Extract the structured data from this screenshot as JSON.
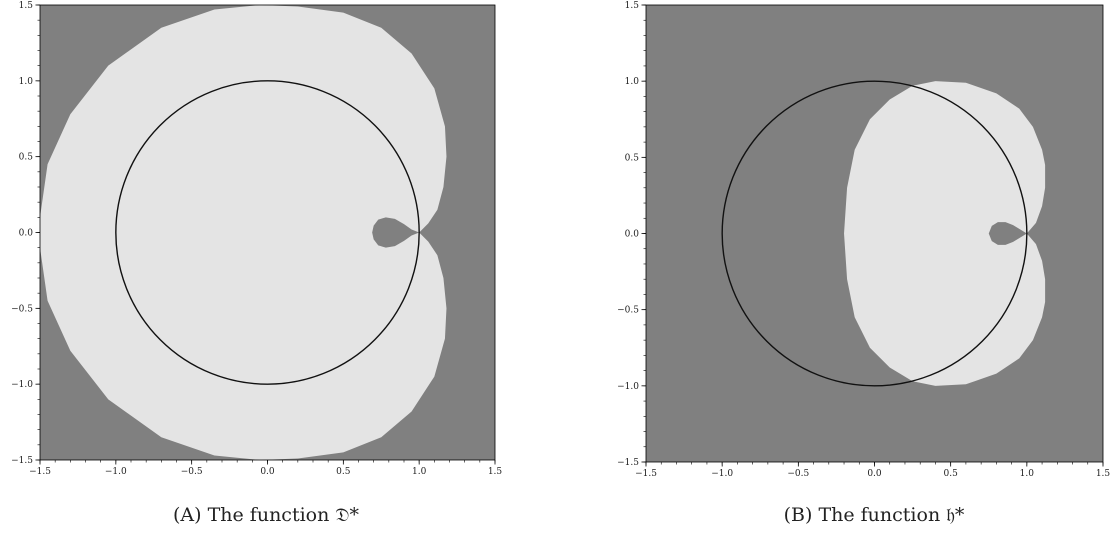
{
  "chart_data": [
    {
      "type": "region-plot",
      "caption": "(A) The function 𝔇*",
      "xlim": [
        -1.5,
        1.5
      ],
      "ylim": [
        -1.5,
        1.5
      ],
      "x_ticks": [
        -1.5,
        -1.0,
        -0.5,
        0.0,
        0.5,
        1.0,
        1.5
      ],
      "y_ticks": [
        -1.5,
        -1.0,
        -0.5,
        0.0,
        0.5,
        1.0,
        1.5
      ],
      "x_tick_labels": [
        "−1.5",
        "−1.0",
        "−0.5",
        "0.0",
        "0.5",
        "1.0",
        "1.5"
      ],
      "y_tick_labels": [
        "−1.5",
        "−1.0",
        "−0.5",
        "0.0",
        "0.5",
        "1.0",
        "1.5"
      ],
      "unit_circle": {
        "center": [
          0,
          0
        ],
        "radius": 1
      },
      "region_boundary": [
        [
          1.0,
          0.0
        ],
        [
          1.06,
          0.06
        ],
        [
          1.12,
          0.15
        ],
        [
          1.16,
          0.3
        ],
        [
          1.18,
          0.5
        ],
        [
          1.17,
          0.7
        ],
        [
          1.1,
          0.95
        ],
        [
          0.95,
          1.18
        ],
        [
          0.75,
          1.35
        ],
        [
          0.5,
          1.45
        ],
        [
          0.2,
          1.49
        ],
        [
          -0.05,
          1.5
        ],
        [
          -0.35,
          1.47
        ],
        [
          -0.7,
          1.35
        ],
        [
          -1.05,
          1.1
        ],
        [
          -1.3,
          0.78
        ],
        [
          -1.45,
          0.45
        ],
        [
          -1.5,
          0.1
        ],
        [
          -1.5,
          -0.1
        ],
        [
          -1.45,
          -0.45
        ],
        [
          -1.3,
          -0.78
        ],
        [
          -1.05,
          -1.1
        ],
        [
          -0.7,
          -1.35
        ],
        [
          -0.35,
          -1.47
        ],
        [
          -0.05,
          -1.5
        ],
        [
          0.2,
          -1.49
        ],
        [
          0.5,
          -1.45
        ],
        [
          0.75,
          -1.35
        ],
        [
          0.95,
          -1.18
        ],
        [
          1.1,
          -0.95
        ],
        [
          1.17,
          -0.7
        ],
        [
          1.18,
          -0.5
        ],
        [
          1.16,
          -0.3
        ],
        [
          1.12,
          -0.15
        ],
        [
          1.06,
          -0.06
        ],
        [
          1.0,
          0.0
        ]
      ],
      "hole_boundary": [
        [
          1.0,
          0.0
        ],
        [
          0.95,
          0.02
        ],
        [
          0.9,
          0.055
        ],
        [
          0.84,
          0.09
        ],
        [
          0.78,
          0.1
        ],
        [
          0.73,
          0.085
        ],
        [
          0.7,
          0.045
        ],
        [
          0.69,
          0.0
        ],
        [
          0.7,
          -0.045
        ],
        [
          0.73,
          -0.085
        ],
        [
          0.78,
          -0.1
        ],
        [
          0.84,
          -0.09
        ],
        [
          0.9,
          -0.055
        ],
        [
          0.95,
          -0.02
        ],
        [
          1.0,
          0.0
        ]
      ],
      "colors": {
        "background": "#808080",
        "region": "#e4e4e4",
        "circle": "#111111"
      }
    },
    {
      "type": "region-plot",
      "caption": "(B) The function 𝔥*",
      "xlim": [
        -1.5,
        1.5
      ],
      "ylim": [
        -1.5,
        1.5
      ],
      "x_ticks": [
        -1.5,
        -1.0,
        -0.5,
        0.0,
        0.5,
        1.0,
        1.5
      ],
      "y_ticks": [
        -1.5,
        -1.0,
        -0.5,
        0.0,
        0.5,
        1.0,
        1.5
      ],
      "x_tick_labels": [
        "−1.5",
        "−1.0",
        "−0.5",
        "0.0",
        "0.5",
        "1.0",
        "1.5"
      ],
      "y_tick_labels": [
        "−1.5",
        "−1.0",
        "−0.5",
        "0.0",
        "0.5",
        "1.0",
        "1.5"
      ],
      "unit_circle": {
        "center": [
          0,
          0
        ],
        "radius": 1
      },
      "region_boundary": [
        [
          1.0,
          0.0
        ],
        [
          1.06,
          0.07
        ],
        [
          1.1,
          0.18
        ],
        [
          1.12,
          0.3
        ],
        [
          1.12,
          0.45
        ],
        [
          1.1,
          0.55
        ],
        [
          1.04,
          0.7
        ],
        [
          0.95,
          0.82
        ],
        [
          0.8,
          0.92
        ],
        [
          0.6,
          0.99
        ],
        [
          0.4,
          1.0
        ],
        [
          0.25,
          0.97
        ],
        [
          0.1,
          0.88
        ],
        [
          -0.03,
          0.75
        ],
        [
          -0.13,
          0.55
        ],
        [
          -0.18,
          0.3
        ],
        [
          -0.2,
          0.0
        ],
        [
          -0.18,
          -0.3
        ],
        [
          -0.13,
          -0.55
        ],
        [
          -0.03,
          -0.75
        ],
        [
          0.1,
          -0.88
        ],
        [
          0.25,
          -0.97
        ],
        [
          0.4,
          -1.0
        ],
        [
          0.6,
          -0.99
        ],
        [
          0.8,
          -0.92
        ],
        [
          0.95,
          -0.82
        ],
        [
          1.04,
          -0.7
        ],
        [
          1.1,
          -0.55
        ],
        [
          1.12,
          -0.45
        ],
        [
          1.12,
          -0.3
        ],
        [
          1.1,
          -0.18
        ],
        [
          1.06,
          -0.07
        ],
        [
          1.0,
          0.0
        ]
      ],
      "hole_boundary": [
        [
          1.0,
          0.0
        ],
        [
          0.96,
          0.025
        ],
        [
          0.91,
          0.055
        ],
        [
          0.86,
          0.075
        ],
        [
          0.81,
          0.075
        ],
        [
          0.77,
          0.05
        ],
        [
          0.75,
          0.0
        ],
        [
          0.77,
          -0.05
        ],
        [
          0.81,
          -0.075
        ],
        [
          0.86,
          -0.075
        ],
        [
          0.91,
          -0.055
        ],
        [
          0.96,
          -0.025
        ],
        [
          1.0,
          0.0
        ]
      ],
      "colors": {
        "background": "#808080",
        "region": "#e4e4e4",
        "circle": "#111111"
      }
    }
  ]
}
